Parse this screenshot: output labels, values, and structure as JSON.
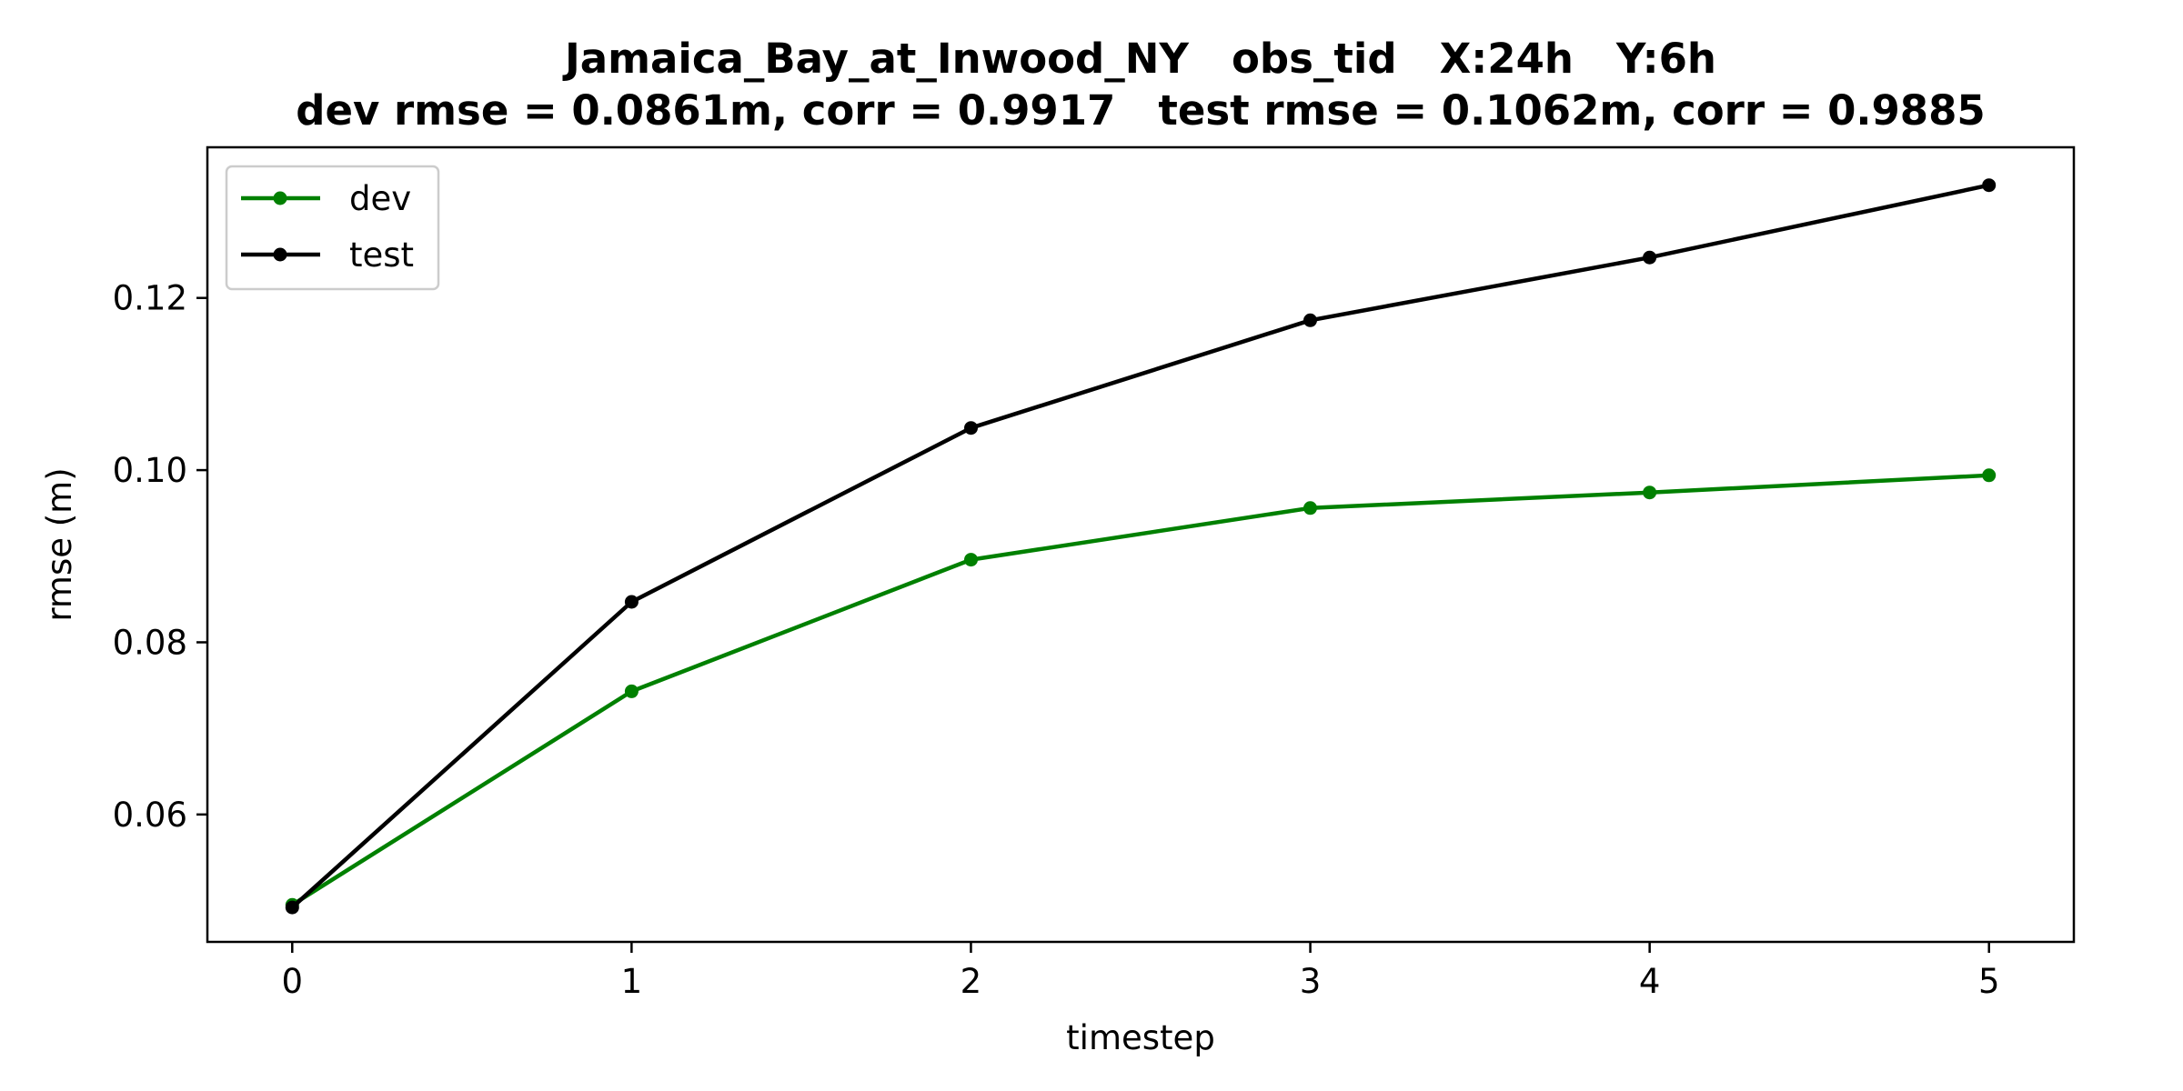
{
  "chart_data": {
    "type": "line",
    "title_line1": "Jamaica_Bay_at_Inwood_NY   obs_tid   X:24h   Y:6h",
    "title_line2": "dev rmse = 0.0861m, corr = 0.9917   test rmse = 0.1062m, corr = 0.9885",
    "xlabel": "timestep",
    "ylabel": "rmse (m)",
    "x": [
      0,
      1,
      2,
      3,
      4,
      5
    ],
    "xlim": [
      -0.25,
      5.25
    ],
    "ylim": [
      0.0452,
      0.1375
    ],
    "xticks": [
      0,
      1,
      2,
      3,
      4,
      5
    ],
    "yticks": [
      0.06,
      0.08,
      0.1,
      0.12
    ],
    "ytick_labels": [
      "0.06",
      "0.08",
      "0.10",
      "0.12"
    ],
    "grid": false,
    "legend_position": "top-left",
    "series": [
      {
        "name": "dev",
        "color": "#008000",
        "values": [
          0.0495,
          0.0743,
          0.0896,
          0.0956,
          0.0974,
          0.0994
        ]
      },
      {
        "name": "test",
        "color": "#000000",
        "values": [
          0.0492,
          0.0847,
          0.1049,
          0.1174,
          0.1247,
          0.1331
        ]
      }
    ]
  }
}
